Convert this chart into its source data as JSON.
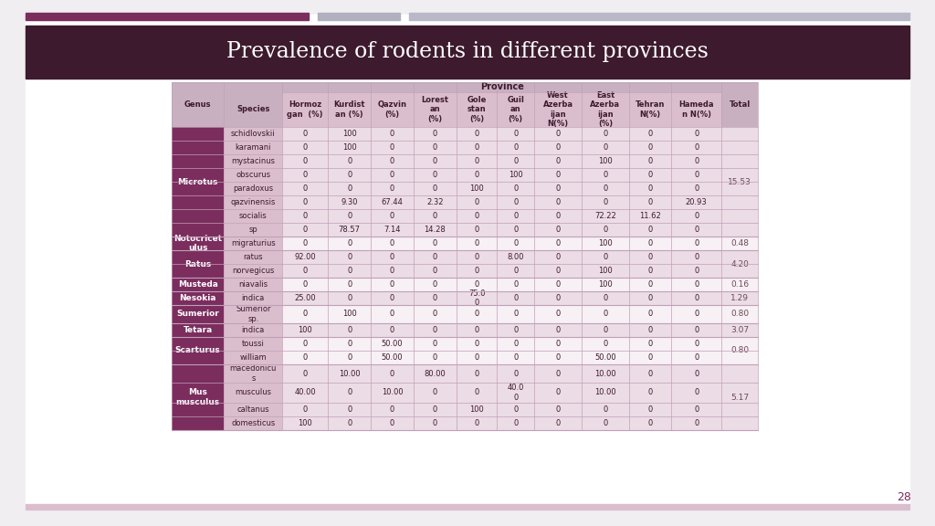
{
  "title": "Prevalence of rodents in different provinces",
  "slide_number": "28",
  "header_dark": "#3d1a2e",
  "header_medium": "#7b2d5e",
  "header_light": "#dbbece",
  "province_header_bg": "#c8b0c0",
  "col_header_bg": "#dbbece",
  "genus_bg": "#7b2d5e",
  "genus_text": "#ffffff",
  "species_bg": "#dbbece",
  "row_alt1": "#ecdce5",
  "row_alt2": "#f7f0f4",
  "text_dark": "#3d1a2e",
  "total_text": "#6a4a5a",
  "grid_color": "#c0a0b8",
  "top_bar1_color": "#7b2d5e",
  "top_bar2_color": "#b0b0c0",
  "top_bar3_color": "#b8b8c8",
  "slide_bg": "#ffffff",
  "outer_bg": "#f0eef0",
  "genus_groups": [
    {
      "name": "Microtus",
      "rows": [
        0,
        1,
        2,
        3,
        4,
        5,
        6,
        7
      ],
      "total": "15.53"
    },
    {
      "name": "Notocricet\nulus",
      "rows": [
        8
      ],
      "total": "0.48"
    },
    {
      "name": "Ratus",
      "rows": [
        9,
        10
      ],
      "total": "4.20"
    },
    {
      "name": "Musteda",
      "rows": [
        11
      ],
      "total": "0.16"
    },
    {
      "name": "Nesokia",
      "rows": [
        12
      ],
      "total": "1.29"
    },
    {
      "name": "Sumerior",
      "rows": [
        13
      ],
      "total": "0.80"
    },
    {
      "name": "Tetara",
      "rows": [
        14
      ],
      "total": "3.07"
    },
    {
      "name": "Scarturus",
      "rows": [
        15,
        16
      ],
      "total": "0.80"
    },
    {
      "name": "Mus\nmusculus",
      "rows": [
        17,
        18,
        19,
        20
      ],
      "total": "5.17"
    }
  ],
  "species": [
    "schidlovskii",
    "karamani",
    "mystacinus",
    "obscurus",
    "paradoxus",
    "qazvinensis",
    "socialis",
    "sp",
    "migraturius",
    "ratus",
    "norvegicus",
    "niavalis",
    "indica",
    "Sumerior\nsp.",
    "indica",
    "toussi",
    "william",
    "macedonicu\ns",
    "musculus",
    "caltanus",
    "domesticus"
  ],
  "col_headers": [
    "Hormoz\ngan  (%)",
    "Kurdist\nan (%)",
    "Qazvin\n(%)",
    "Lorest\nan\n(%)",
    "Gole\nstan\n(%)",
    "Guil\nan\n(%)",
    "West\nAzerba\nijan\nN(%)",
    "East\nAzerba\nijan\n(%)",
    "Tehran\nN(%)",
    "Hameda\nn N(%)"
  ],
  "vals": [
    [
      "0",
      "100",
      "0",
      "0",
      "0",
      "0",
      "0",
      "0",
      "0",
      "0"
    ],
    [
      "0",
      "100",
      "0",
      "0",
      "0",
      "0",
      "0",
      "0",
      "0",
      "0"
    ],
    [
      "0",
      "0",
      "0",
      "0",
      "0",
      "0",
      "0",
      "100",
      "0",
      "0"
    ],
    [
      "0",
      "0",
      "0",
      "0",
      "0",
      "100",
      "0",
      "0",
      "0",
      "0"
    ],
    [
      "0",
      "0",
      "0",
      "0",
      "100",
      "0",
      "0",
      "0",
      "0",
      "0"
    ],
    [
      "0",
      "9.30",
      "67.44",
      "2.32",
      "0",
      "0",
      "0",
      "0",
      "0",
      "20.93"
    ],
    [
      "0",
      "0",
      "0",
      "0",
      "0",
      "0",
      "0",
      "72.22",
      "11.62",
      "0"
    ],
    [
      "0",
      "78.57",
      "7.14",
      "14.28",
      "0",
      "0",
      "0",
      "0",
      "0",
      "0"
    ],
    [
      "0",
      "0",
      "0",
      "0",
      "0",
      "0",
      "0",
      "100",
      "0",
      "0"
    ],
    [
      "92.00",
      "0",
      "0",
      "0",
      "0",
      "8.00",
      "0",
      "0",
      "0",
      "0"
    ],
    [
      "0",
      "0",
      "0",
      "0",
      "0",
      "0",
      "0",
      "100",
      "0",
      "0"
    ],
    [
      "0",
      "0",
      "0",
      "0",
      "0",
      "0",
      "0",
      "100",
      "0",
      "0"
    ],
    [
      "25.00",
      "0",
      "0",
      "0",
      "75.0\n0",
      "0",
      "0",
      "0",
      "0",
      "0"
    ],
    [
      "0",
      "100",
      "0",
      "0",
      "0",
      "0",
      "0",
      "0",
      "0",
      "0"
    ],
    [
      "100",
      "0",
      "0",
      "0",
      "0",
      "0",
      "0",
      "0",
      "0",
      "0"
    ],
    [
      "0",
      "0",
      "50.00",
      "0",
      "0",
      "0",
      "0",
      "0",
      "0",
      "0"
    ],
    [
      "0",
      "0",
      "50.00",
      "0",
      "0",
      "0",
      "0",
      "50.00",
      "0",
      "0"
    ],
    [
      "0",
      "10.00",
      "0",
      "80.00",
      "0",
      "0",
      "0",
      "10.00",
      "0",
      "0"
    ],
    [
      "40.00",
      "0",
      "10.00",
      "0",
      "0",
      "40.0\n0",
      "0",
      "10.00",
      "0",
      "0"
    ],
    [
      "0",
      "0",
      "0",
      "0",
      "100",
      "0",
      "0",
      "0",
      "0",
      "0"
    ],
    [
      "100",
      "0",
      "0",
      "0",
      "0",
      "0",
      "0",
      "0",
      "0",
      "0"
    ]
  ]
}
